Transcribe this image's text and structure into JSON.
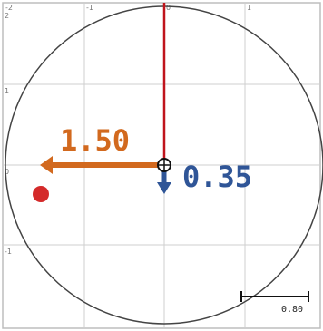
{
  "diagram": {
    "frame_color": "#bdbdbd",
    "grid_color": "#cfcfcf",
    "circle_color": "#444444",
    "x_ticks": [
      "-2",
      "-1",
      "0",
      "1"
    ],
    "y_ticks": [
      "2",
      "1",
      "0",
      "-1"
    ],
    "horizontal_vector": {
      "value_text": "1.50",
      "color": "#d2691e"
    },
    "downward_vector": {
      "value_text": "0.35",
      "color": "#2f5597"
    },
    "upward_line_color": "#c0141c",
    "red_dot_color": "#d42a2a",
    "scale_bar": {
      "label": "0.80"
    }
  }
}
